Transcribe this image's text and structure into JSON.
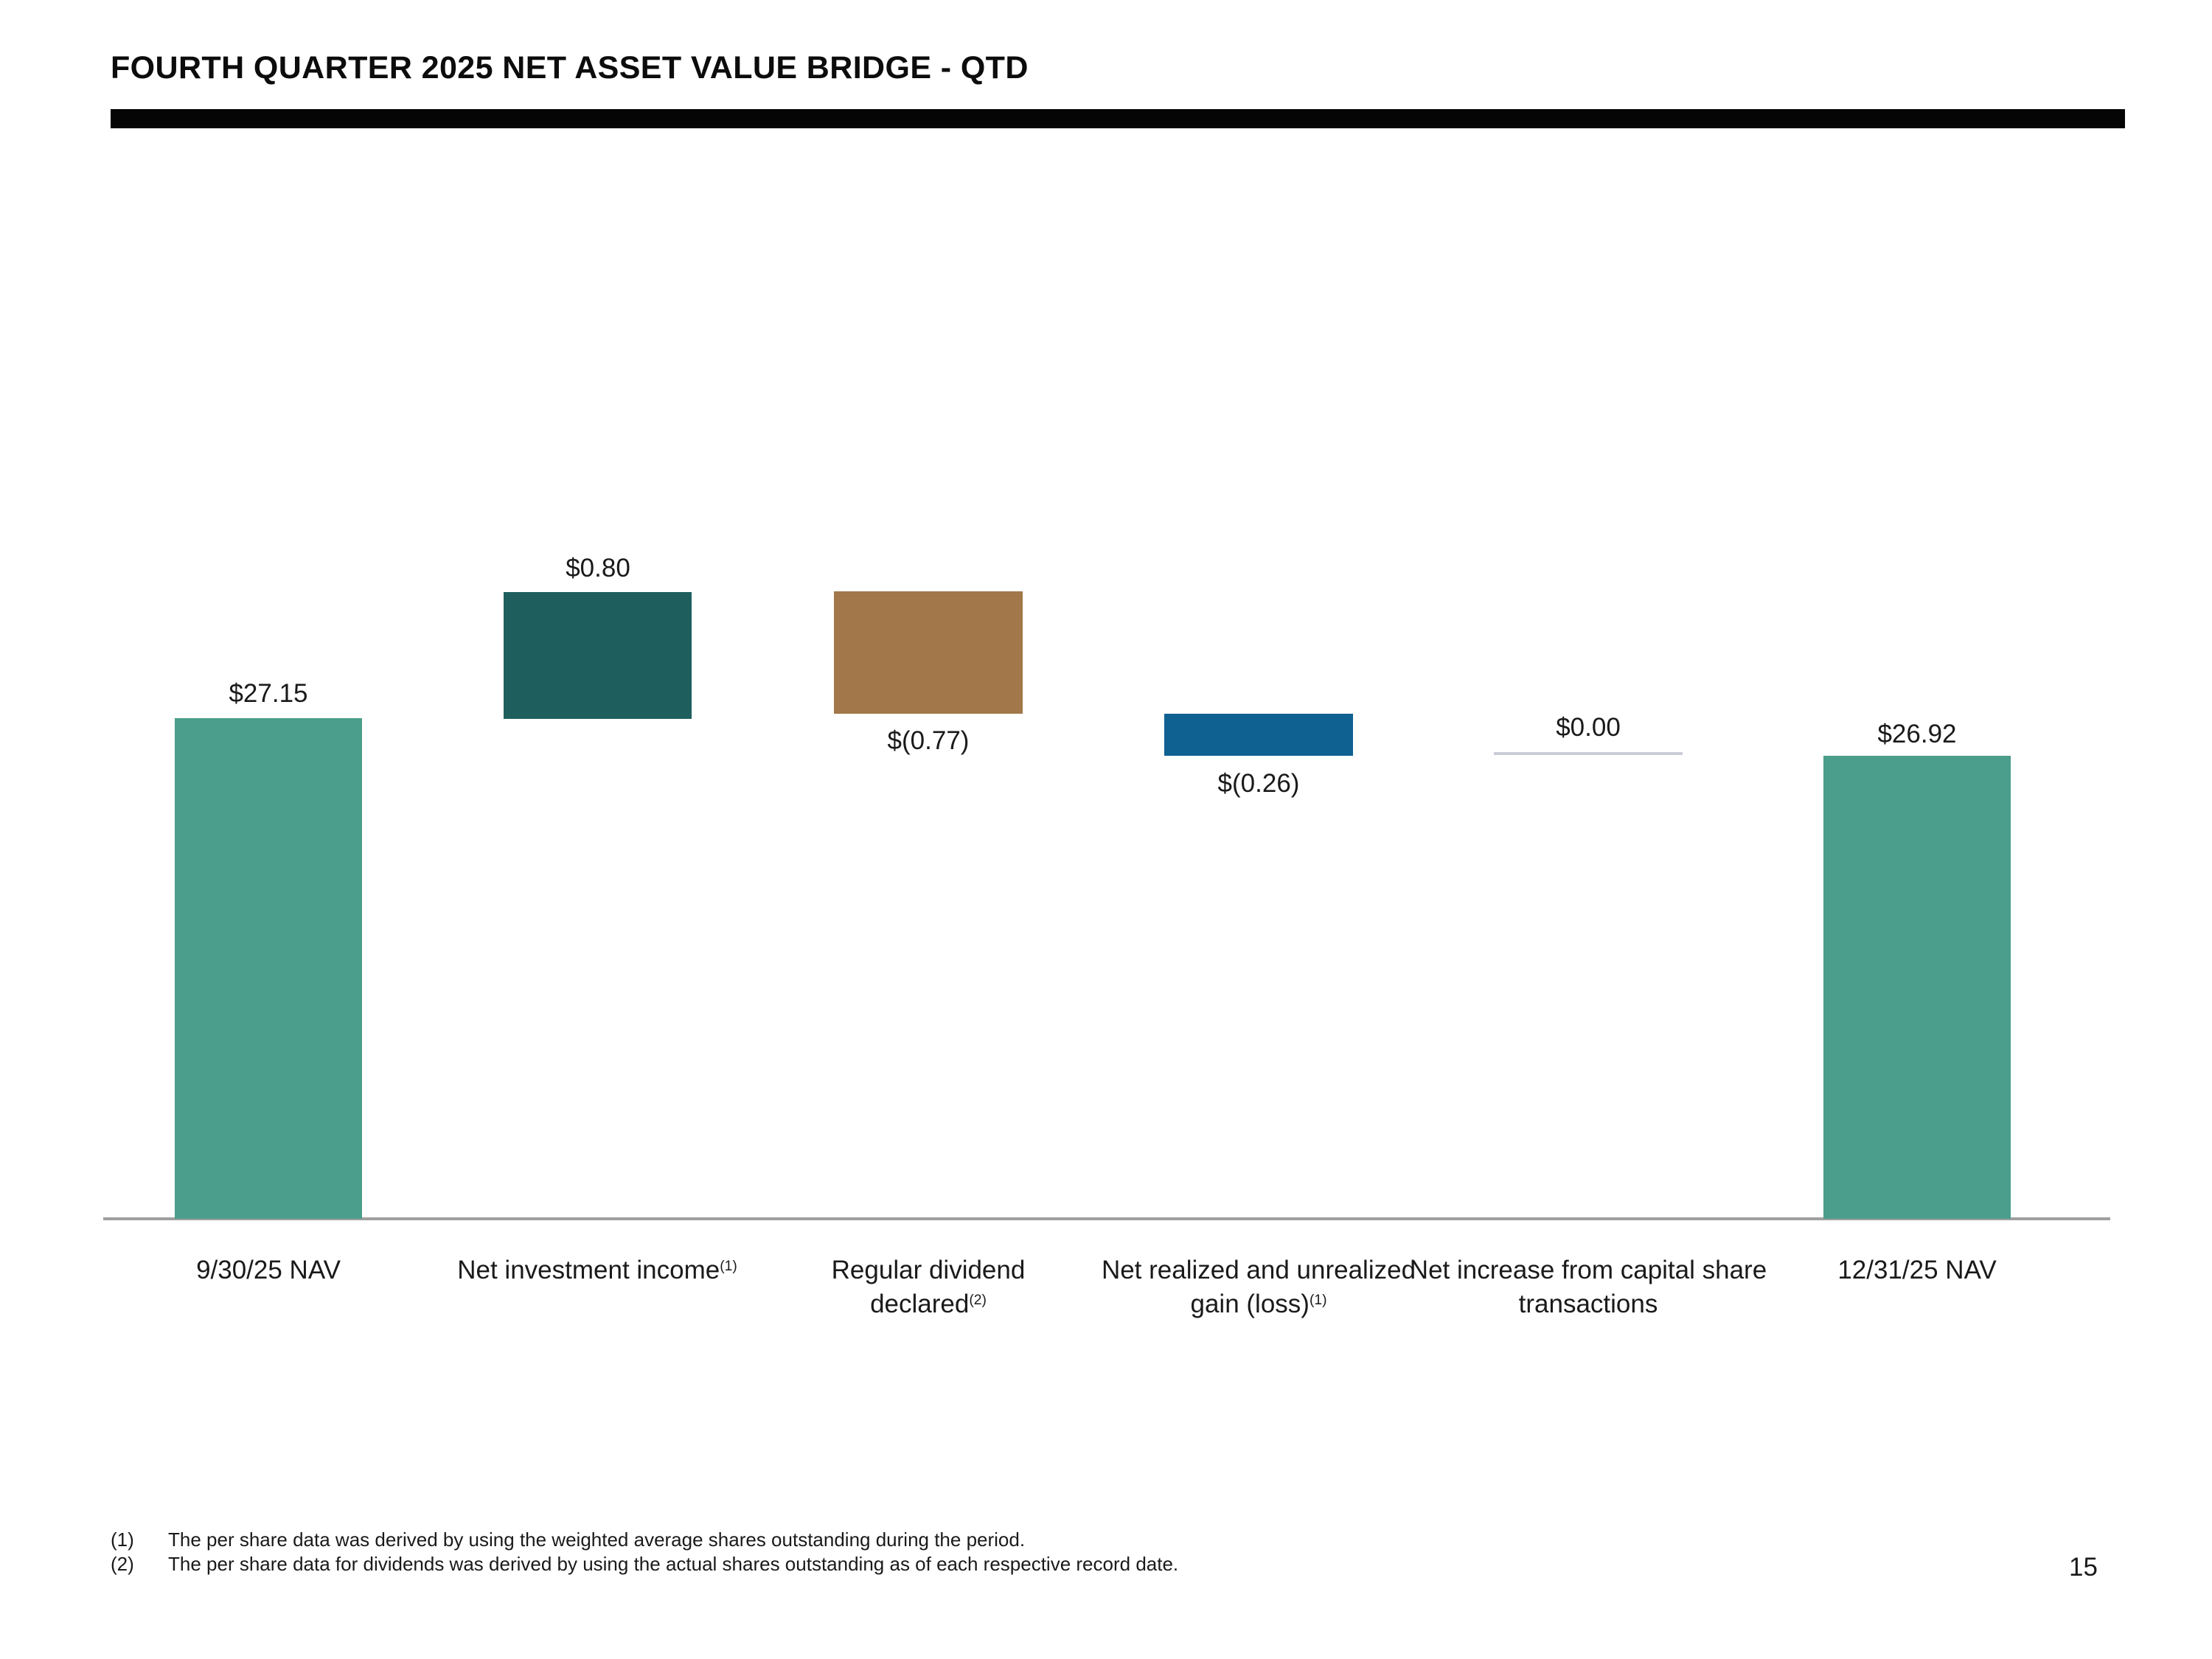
{
  "header": {
    "title": "FOURTH QUARTER 2025 NET ASSET VALUE BRIDGE - QTD"
  },
  "chart_data": {
    "type": "bar",
    "subtype": "waterfall",
    "title": "Fourth Quarter 2025 Net Asset Value Bridge - QTD",
    "xlabel": "",
    "ylabel": "",
    "legend": "none",
    "gridlines": false,
    "value_axis": "hidden; values shown as data labels on each bar",
    "categories": [
      "9/30/25 NAV",
      "Net investment income (1)",
      "Regular dividend declared (2)",
      "Net realized and unrealized gain (loss) (1)",
      "Net increase from capital share transactions",
      "12/31/25 NAV"
    ],
    "bars": [
      {
        "label": "9/30/25 NAV",
        "label_sup": "",
        "value": 27.15,
        "display": "$27.15",
        "role": "start-total",
        "color": "#4A9E8B",
        "value_label_position": "above"
      },
      {
        "label": "Net investment income",
        "label_sup": "(1)",
        "value": 0.8,
        "display": "$0.80",
        "role": "increase",
        "color": "#1E5F5E",
        "value_label_position": "above"
      },
      {
        "label": "Regular dividend declared",
        "label_sup": "(2)",
        "value": -0.77,
        "display": "$(0.77)",
        "role": "decrease",
        "color": "#A2774A",
        "value_label_position": "below"
      },
      {
        "label": "Net realized and unrealized gain (loss)",
        "label_sup": "(1)",
        "value": -0.26,
        "display": "$(0.26)",
        "role": "decrease",
        "color": "#0E6191",
        "value_label_position": "below"
      },
      {
        "label": "Net increase from capital share transactions",
        "label_sup": "",
        "value": 0.0,
        "display": "$0.00",
        "role": "zero",
        "color": "#C9CED6",
        "value_label_position": "above"
      },
      {
        "label": "12/31/25 NAV",
        "label_sup": "",
        "value": 26.92,
        "display": "$26.92",
        "role": "end-total",
        "color": "#4A9E8B",
        "value_label_position": "above"
      }
    ]
  },
  "footnotes": [
    {
      "marker": "(1)",
      "text": "The per share data was derived by using the weighted average shares outstanding during the period."
    },
    {
      "marker": "(2)",
      "text": "The per share data for dividends was derived by using the actual shares outstanding as of each respective record date."
    }
  ],
  "page_number": "15",
  "colors": {
    "bar_green": "#4A9E8B",
    "bar_dark_teal": "#1E5F5E",
    "bar_brown": "#A2774A",
    "bar_blue": "#0E6191",
    "zero_bar_line": "#C9CED6",
    "axis_line": "#9F9F9F",
    "title_rule": "#050505",
    "text": "#1A1A1A"
  }
}
